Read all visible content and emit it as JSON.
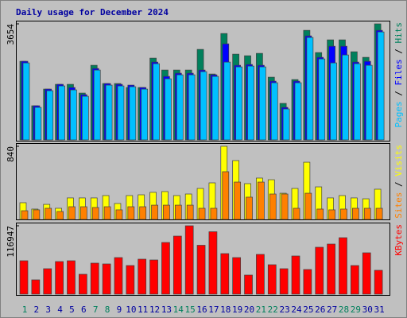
{
  "chart_data": [
    {
      "type": "bar",
      "title": "Daily usage for December 2024",
      "ylim": [
        0,
        3654
      ],
      "yticks": [
        3654
      ],
      "separator": "/",
      "series": [
        {
          "name": "Hits",
          "color": "#00805c",
          "values": [
            2475,
            1075,
            1600,
            1750,
            1750,
            1475,
            2350,
            1775,
            1775,
            1650,
            1650,
            2575,
            2200,
            2200,
            2200,
            2850,
            2075,
            3350,
            2700,
            2650,
            2725,
            1975,
            1150,
            1900,
            3450,
            2750,
            3150,
            3150,
            2775,
            2600,
            3654
          ]
        },
        {
          "name": "Files",
          "color": "#0000ff",
          "values": [
            2475,
            1075,
            1600,
            1750,
            1650,
            1425,
            2250,
            1775,
            1750,
            1725,
            1650,
            2450,
            2000,
            2100,
            2100,
            2200,
            2050,
            3025,
            2350,
            2375,
            2350,
            1850,
            1025,
            1850,
            3275,
            2600,
            2950,
            2950,
            2450,
            2475,
            3450
          ]
        },
        {
          "name": "Pages",
          "color": "#00c0ff",
          "values": [
            2425,
            1025,
            1550,
            1700,
            1575,
            1375,
            2200,
            1725,
            1700,
            1675,
            1600,
            2400,
            1925,
            2050,
            2050,
            2150,
            2000,
            2450,
            2300,
            2325,
            2300,
            1800,
            975,
            1800,
            3225,
            2550,
            2425,
            2675,
            2400,
            2350,
            3400
          ]
        }
      ]
    },
    {
      "type": "bar",
      "ylim": [
        0,
        840
      ],
      "yticks": [
        840
      ],
      "separator": "/",
      "series": [
        {
          "name": "Visits",
          "color": "#ffff00",
          "values": [
            192,
            119,
            173,
            128,
            247,
            247,
            247,
            274,
            183,
            274,
            283,
            311,
            320,
            274,
            292,
            356,
            420,
            840,
            676,
            411,
            475,
            456,
            301,
            356,
            657,
            374,
            247,
            274,
            247,
            237,
            347
          ]
        },
        {
          "name": "Sites",
          "color": "#ff8000",
          "values": [
            100,
            110,
            128,
            91,
            146,
            146,
            137,
            146,
            110,
            146,
            146,
            164,
            164,
            164,
            164,
            128,
            128,
            548,
            429,
            256,
            429,
            292,
            292,
            128,
            301,
            119,
            110,
            119,
            128,
            128,
            128
          ]
        }
      ]
    },
    {
      "type": "bar",
      "ylim": [
        0,
        116947
      ],
      "yticks": [
        116947
      ],
      "categories": [
        "1",
        "2",
        "3",
        "4",
        "5",
        "6",
        "7",
        "8",
        "9",
        "10",
        "11",
        "12",
        "13",
        "14",
        "15",
        "16",
        "17",
        "18",
        "19",
        "20",
        "21",
        "22",
        "23",
        "24",
        "25",
        "26",
        "27",
        "28",
        "29",
        "30",
        "31"
      ],
      "category_colors": [
        "#00805c",
        "#0000a0",
        "#0000a0",
        "#0000a0",
        "#0000a0",
        "#0000a0",
        "#00805c",
        "#00805c",
        "#0000a0",
        "#0000a0",
        "#0000a0",
        "#0000a0",
        "#0000a0",
        "#00805c",
        "#00805c",
        "#0000a0",
        "#0000a0",
        "#0000a0",
        "#0000a0",
        "#0000a0",
        "#00805c",
        "#00805c",
        "#0000a0",
        "#0000a0",
        "#0000a0",
        "#0000a0",
        "#0000a0",
        "#00805c",
        "#00805c",
        "#0000a0",
        "#0000a0"
      ],
      "series": [
        {
          "name": "KBytes",
          "color": "#ff0000",
          "values": [
            57120,
            24480,
            43520,
            55760,
            57120,
            34000,
            53040,
            51680,
            62560,
            48960,
            59840,
            58480,
            88400,
            99280,
            116947,
            83640,
            106760,
            69360,
            62560,
            32640,
            68000,
            50320,
            43520,
            65280,
            42160,
            80240,
            85680,
            96560,
            48960,
            70720,
            40800
          ]
        }
      ]
    }
  ]
}
